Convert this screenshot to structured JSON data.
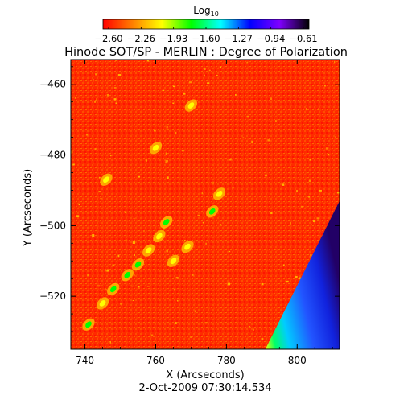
{
  "chart_data": {
    "type": "heatmap",
    "title": "Hinode SOT/SP - MERLIN : Degree of Polarization",
    "xlabel": "X (Arcseconds)",
    "ylabel": "Y (Arcseconds)",
    "footer": "2-Oct-2009 07:30:14.534",
    "colorbar": {
      "label_main": "Log",
      "label_sub": "10",
      "ticks": [
        "−2.60",
        "−2.26",
        "−1.93",
        "−1.60",
        "−1.27",
        "−0.94",
        "−0.61"
      ],
      "range": [
        -2.6,
        -0.61
      ],
      "colormap": [
        "#ff0000",
        "#ff7f00",
        "#ffff00",
        "#00ff00",
        "#00ffff",
        "#0000ff",
        "#7f00ff",
        "#000000"
      ]
    },
    "xlim": [
      736,
      812
    ],
    "ylim": [
      -535,
      -453
    ],
    "xticks": [
      {
        "value": 740,
        "label": "740"
      },
      {
        "value": 760,
        "label": "760"
      },
      {
        "value": 780,
        "label": "780"
      },
      {
        "value": 800,
        "label": "800"
      }
    ],
    "yticks": [
      {
        "value": -460,
        "label": "−460"
      },
      {
        "value": -480,
        "label": "−480"
      },
      {
        "value": -500,
        "label": "−500"
      },
      {
        "value": -520,
        "label": "−520"
      }
    ],
    "background_level": -2.55,
    "limb_region": {
      "description": "diagonal band off the solar limb, log values rising from about -1.9 to -0.7",
      "edge_points": [
        [
          791,
          -535
        ],
        [
          812,
          -493
        ]
      ]
    },
    "bright_features": [
      {
        "x": 741,
        "y": -528,
        "level": -1.7
      },
      {
        "x": 745,
        "y": -522,
        "level": -1.9
      },
      {
        "x": 748,
        "y": -518,
        "level": -1.8
      },
      {
        "x": 752,
        "y": -514,
        "level": -1.7
      },
      {
        "x": 755,
        "y": -511,
        "level": -1.8
      },
      {
        "x": 758,
        "y": -507,
        "level": -1.9
      },
      {
        "x": 761,
        "y": -503,
        "level": -2.0
      },
      {
        "x": 763,
        "y": -499,
        "level": -1.8
      },
      {
        "x": 765,
        "y": -510,
        "level": -1.9
      },
      {
        "x": 769,
        "y": -506,
        "level": -2.0
      },
      {
        "x": 746,
        "y": -487,
        "level": -1.9
      },
      {
        "x": 776,
        "y": -496,
        "level": -1.8
      },
      {
        "x": 778,
        "y": -491,
        "level": -2.0
      },
      {
        "x": 760,
        "y": -478,
        "level": -2.1
      },
      {
        "x": 770,
        "y": -466,
        "level": -2.1
      }
    ]
  }
}
